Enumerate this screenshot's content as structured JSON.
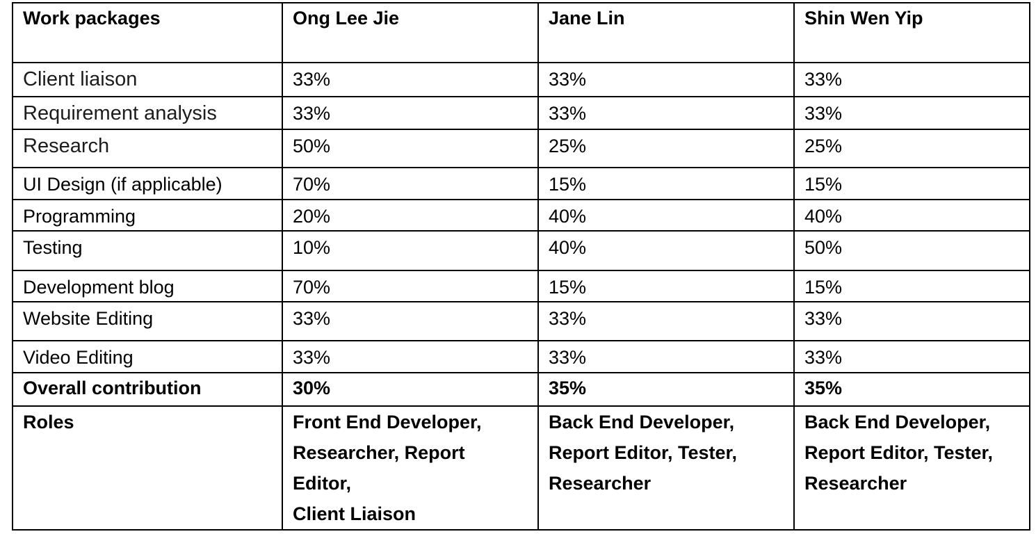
{
  "table": {
    "headers": [
      "Work packages",
      "Ong Lee Jie",
      "Jane Lin",
      "Shin Wen Yip"
    ],
    "rows": [
      {
        "task": "Client liaison",
        "values": [
          "33%",
          "33%",
          "33%"
        ]
      },
      {
        "task": "Requirement analysis",
        "values": [
          "33%",
          "33%",
          "33%"
        ]
      },
      {
        "task": "Research",
        "values": [
          "50%",
          "25%",
          "25%"
        ]
      },
      {
        "task": "UI Design (if  applicable)",
        "values": [
          "70%",
          "15%",
          "15%"
        ]
      },
      {
        "task": "Programming",
        "values": [
          "20%",
          "40%",
          "40%"
        ]
      },
      {
        "task": "Testing",
        "values": [
          "10%",
          "40%",
          "50%"
        ]
      },
      {
        "task": "Development blog",
        "values": [
          "70%",
          "15%",
          "15%"
        ]
      },
      {
        "task": "Website Editing",
        "values": [
          "33%",
          "33%",
          "33%"
        ]
      },
      {
        "task": "Video Editing",
        "values": [
          "33%",
          "33%",
          "33%"
        ]
      }
    ],
    "overall": {
      "label": "Overall contribution",
      "values": [
        "30%",
        "35%",
        "35%"
      ]
    },
    "roles": {
      "label": "Roles",
      "values": [
        [
          "Front End Developer,",
          "Researcher,  Report",
          "Editor,",
          "Client Liaison"
        ],
        [
          "Back End Developer,",
          "Report Editor,  Tester,",
          "Researcher"
        ],
        [
          "Back End Developer,",
          "Report Editor,  Tester,",
          "Researcher"
        ]
      ]
    }
  }
}
